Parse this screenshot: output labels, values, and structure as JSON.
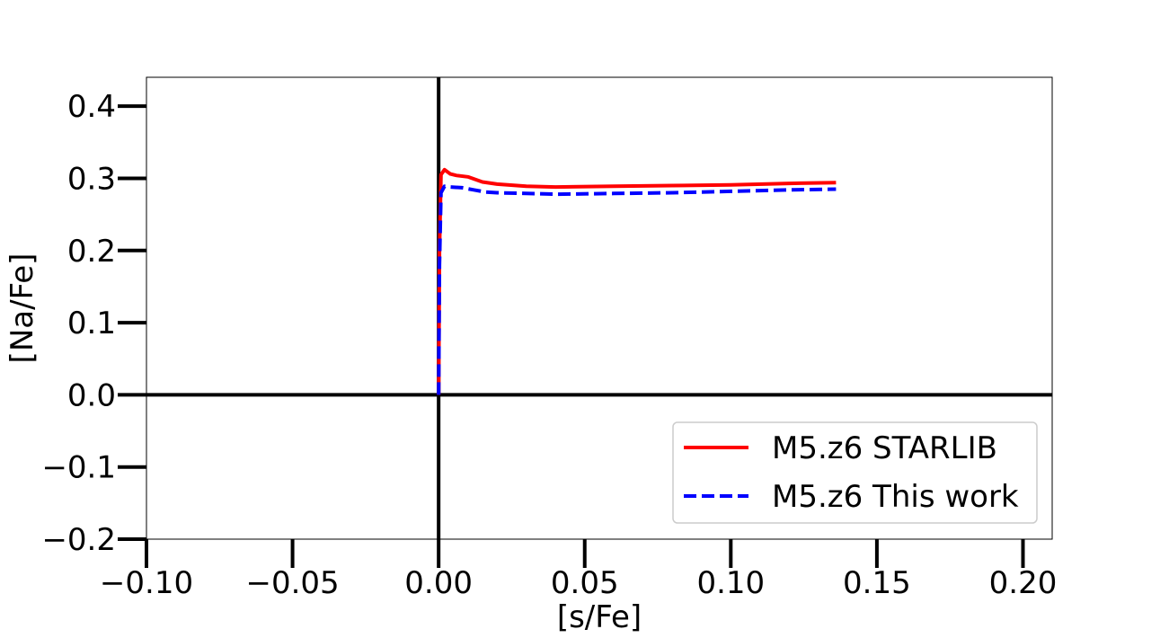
{
  "chart_data": {
    "type": "line",
    "title": "",
    "xlabel": "[s/Fe]",
    "ylabel": "[Na/Fe]",
    "xlim": [
      -0.1,
      0.21
    ],
    "ylim": [
      -0.2,
      0.44
    ],
    "xticks": [
      -0.1,
      -0.05,
      0.0,
      0.05,
      0.1,
      0.15,
      0.2
    ],
    "yticks": [
      -0.2,
      -0.1,
      0.0,
      0.1,
      0.2,
      0.3,
      0.4
    ],
    "xtick_labels": [
      "−0.10",
      "−0.05",
      "0.00",
      "0.05",
      "0.10",
      "0.15",
      "0.20"
    ],
    "ytick_labels": [
      "−0.2",
      "−0.1",
      "0.0",
      "0.1",
      "0.2",
      "0.3",
      "0.4"
    ],
    "grid": false,
    "reference_lines": {
      "x": 0.0,
      "y": 0.0
    },
    "legend_position": "lower-right",
    "series": [
      {
        "name": "M5.z6 STARLIB",
        "color": "#ff0000",
        "style": "solid",
        "x": [
          0.0,
          0.0003,
          0.0008,
          0.002,
          0.004,
          0.006,
          0.01,
          0.015,
          0.02,
          0.03,
          0.04,
          0.06,
          0.08,
          0.1,
          0.12,
          0.136
        ],
        "y": [
          0.0,
          0.2,
          0.305,
          0.312,
          0.306,
          0.304,
          0.302,
          0.295,
          0.292,
          0.289,
          0.288,
          0.289,
          0.29,
          0.291,
          0.293,
          0.294
        ]
      },
      {
        "name": "M5.z6 This work",
        "color": "#0000ff",
        "style": "dashed",
        "x": [
          0.0,
          0.0003,
          0.0008,
          0.002,
          0.004,
          0.008,
          0.012,
          0.016,
          0.02,
          0.03,
          0.04,
          0.06,
          0.08,
          0.1,
          0.12,
          0.136
        ],
        "y": [
          0.0,
          0.18,
          0.28,
          0.289,
          0.288,
          0.287,
          0.284,
          0.281,
          0.28,
          0.279,
          0.278,
          0.279,
          0.28,
          0.282,
          0.284,
          0.285
        ]
      }
    ]
  }
}
